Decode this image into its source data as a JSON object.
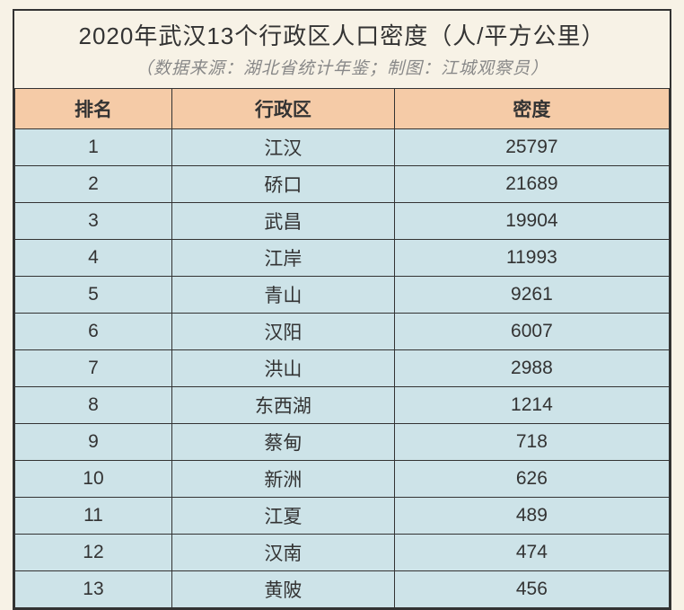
{
  "title": "2020年武汉13个行政区人口密度（人/平方公里）",
  "subtitle": "（数据来源：湖北省统计年鉴；制图：江城观察员）",
  "table": {
    "columns": [
      "排名",
      "行政区",
      "密度"
    ],
    "column_widths": [
      "24%",
      "34%",
      "42%"
    ],
    "header_bg": "#f5cba7",
    "row_bg": "#cde3e8",
    "border_color": "#333333",
    "text_color": "#333333",
    "font_size": 21,
    "rows": [
      {
        "rank": "1",
        "district": "江汉",
        "density": "25797"
      },
      {
        "rank": "2",
        "district": "硚口",
        "density": "21689"
      },
      {
        "rank": "3",
        "district": "武昌",
        "density": "19904"
      },
      {
        "rank": "4",
        "district": "江岸",
        "density": "11993"
      },
      {
        "rank": "5",
        "district": "青山",
        "density": "9261"
      },
      {
        "rank": "6",
        "district": "汉阳",
        "density": "6007"
      },
      {
        "rank": "7",
        "district": "洪山",
        "density": "2988"
      },
      {
        "rank": "8",
        "district": "东西湖",
        "density": "1214"
      },
      {
        "rank": "9",
        "district": "蔡甸",
        "density": "718"
      },
      {
        "rank": "10",
        "district": "新洲",
        "density": "626"
      },
      {
        "rank": "11",
        "district": "江夏",
        "density": "489"
      },
      {
        "rank": "12",
        "district": "汉南",
        "density": "474"
      },
      {
        "rank": "13",
        "district": "黄陂",
        "density": "456"
      }
    ]
  },
  "page_bg": "#f7f2e6",
  "title_fontsize": 26,
  "subtitle_fontsize": 19,
  "subtitle_color": "#888888"
}
